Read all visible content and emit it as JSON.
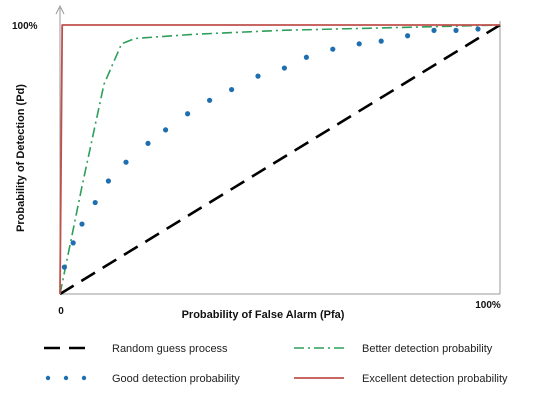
{
  "chart_data": {
    "type": "line",
    "title": "",
    "xlabel": "Probability of False Alarm (Pfa)",
    "ylabel": "Probability of Detection (Pd)",
    "xlim": [
      0,
      1
    ],
    "ylim": [
      0,
      1
    ],
    "x_tick_labels": [
      "0",
      "100%"
    ],
    "y_tick_labels": [
      "100%"
    ],
    "grid": false,
    "legend_position": "bottom",
    "series": [
      {
        "name": "Random guess process",
        "style": "long-dash",
        "color": "#000000",
        "x": [
          0,
          1
        ],
        "y": [
          0,
          1
        ]
      },
      {
        "name": "Better detection probability",
        "style": "dash-dot",
        "color": "#2e9e5b",
        "x": [
          0,
          0.05,
          0.1,
          0.14,
          0.17,
          0.3,
          0.5,
          0.75,
          1.0
        ],
        "y": [
          0,
          0.4,
          0.78,
          0.93,
          0.95,
          0.965,
          0.98,
          0.99,
          1.0
        ]
      },
      {
        "name": "Good detection probability",
        "style": "dotted-markers",
        "color": "#1f6fb0",
        "x": [
          0.01,
          0.03,
          0.05,
          0.08,
          0.11,
          0.15,
          0.2,
          0.24,
          0.29,
          0.34,
          0.39,
          0.45,
          0.51,
          0.56,
          0.62,
          0.68,
          0.73,
          0.79,
          0.85,
          0.9,
          0.95
        ],
        "y": [
          0.1,
          0.19,
          0.26,
          0.34,
          0.42,
          0.49,
          0.56,
          0.61,
          0.67,
          0.72,
          0.76,
          0.81,
          0.84,
          0.88,
          0.91,
          0.93,
          0.94,
          0.96,
          0.98,
          0.98,
          0.985
        ]
      },
      {
        "name": "Excellent detection probability",
        "style": "solid",
        "color": "#c0504d",
        "x": [
          0,
          0.005,
          1
        ],
        "y": [
          0,
          1,
          1
        ]
      }
    ]
  }
}
